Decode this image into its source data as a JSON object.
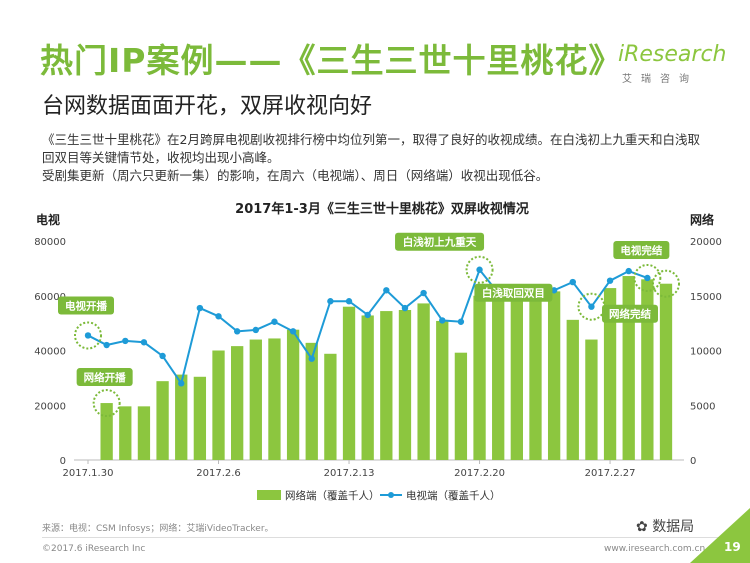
{
  "page": {
    "title": "热门IP案例——《三生三世十里桃花》",
    "subtitle": "台网数据面面开花，双屏收视向好",
    "description": [
      "《三生三世十里桃花》在2月跨屏电视剧收视排行榜中均位列第一，取得了良好的收视成绩。在白浅初上九重天和白浅取",
      "回双目等关键情节处，收视均出现小高峰。",
      "受剧集更新（周六只更新一集）的影响，在周六（电视端）、周日（网络端）收视出现低谷。"
    ],
    "logo_main": "iResearch",
    "logo_sub": "艾瑞咨询",
    "source": "来源：电视：CSM Infosys；网络：艾瑞iVideoTracker。",
    "copyright": "©2017.6 iResearch Inc",
    "url": "www.iresearch.com.cn",
    "watermark": "数据局",
    "page_number": "19"
  },
  "colors": {
    "brand_green": "#7CBA3A",
    "bar_green": "#8CC63F",
    "line_blue": "#1E9BD7",
    "callout_green": "#7CBA3A"
  },
  "chart_data": {
    "type": "bar+line",
    "title": "2017年1-3月《三生三世十里桃花》双屏收视情况",
    "ylabel_left": "电视",
    "ylabel_right": "网络",
    "ylim_left": [
      0,
      80000
    ],
    "ylim_right": [
      0,
      20000
    ],
    "yticks_left": [
      "0",
      "20000",
      "40000",
      "60000",
      "80000"
    ],
    "yticks_right": [
      "0",
      "5000",
      "10000",
      "15000",
      "20000"
    ],
    "x_tick_labels": [
      "2017.1.30",
      "2017.2.6",
      "2017.2.13",
      "2017.2.20",
      "2017.2.27"
    ],
    "grid": false,
    "legend_position": "bottom",
    "series": [
      {
        "name": "网络端（覆盖千人）",
        "type": "bar",
        "axis": "right",
        "x": [
          "2017.1.31",
          "2017.2.1",
          "2017.2.2",
          "2017.2.3",
          "2017.2.4",
          "2017.2.5",
          "2017.2.6",
          "2017.2.7",
          "2017.2.8",
          "2017.2.9",
          "2017.2.10",
          "2017.2.11",
          "2017.2.12",
          "2017.2.13",
          "2017.2.14",
          "2017.2.15",
          "2017.2.16",
          "2017.2.17",
          "2017.2.18",
          "2017.2.19",
          "2017.2.20",
          "2017.2.21",
          "2017.2.22",
          "2017.2.23",
          "2017.2.24",
          "2017.2.25",
          "2017.2.26",
          "2017.2.27",
          "2017.2.28",
          "2017.3.1",
          "2017.3.2"
        ],
        "values": [
          5200,
          4900,
          4900,
          7200,
          7800,
          7600,
          10000,
          10400,
          11000,
          11100,
          11900,
          10700,
          9700,
          14000,
          13200,
          13600,
          13700,
          14300,
          12700,
          9800,
          15000,
          14700,
          15200,
          14500,
          15400,
          12800,
          11000,
          15700,
          16800,
          16500,
          16100
        ]
      },
      {
        "name": "电视端（覆盖千人）",
        "type": "line",
        "axis": "left",
        "x": [
          "2017.1.30",
          "2017.1.31",
          "2017.2.1",
          "2017.2.2",
          "2017.2.3",
          "2017.2.4",
          "2017.2.5",
          "2017.2.6",
          "2017.2.7",
          "2017.2.8",
          "2017.2.9",
          "2017.2.10",
          "2017.2.11",
          "2017.2.12",
          "2017.2.13",
          "2017.2.14",
          "2017.2.15",
          "2017.2.16",
          "2017.2.17",
          "2017.2.18",
          "2017.2.19",
          "2017.2.20",
          "2017.2.21",
          "2017.2.22",
          "2017.2.23",
          "2017.2.24",
          "2017.2.25",
          "2017.2.26",
          "2017.2.27",
          "2017.2.28",
          "2017.3.1"
        ],
        "values": [
          45500,
          42000,
          43500,
          43000,
          38000,
          28000,
          55500,
          52500,
          47000,
          47500,
          50500,
          47000,
          37000,
          58000,
          58000,
          53000,
          62000,
          55500,
          61000,
          51000,
          50500,
          69500,
          61000,
          61000,
          62000,
          62000,
          65000,
          56000,
          65500,
          69000,
          66500
        ]
      }
    ],
    "annotations": [
      {
        "text": "电视开播",
        "series": "电视端（覆盖千人）",
        "x": "2017.1.30"
      },
      {
        "text": "网络开播",
        "series": "网络端（覆盖千人）",
        "x": "2017.1.31"
      },
      {
        "text": "白浅初上九重天",
        "series": "电视端（覆盖千人）",
        "x": "2017.2.20"
      },
      {
        "text": "白浅取回双目",
        "series": "电视端（覆盖千人）",
        "x": "2017.2.26"
      },
      {
        "text": "电视完结",
        "series": "电视端（覆盖千人）",
        "x": "2017.3.1"
      },
      {
        "text": "网络完结",
        "series": "网络端（覆盖千人）",
        "x": "2017.3.2"
      }
    ]
  }
}
